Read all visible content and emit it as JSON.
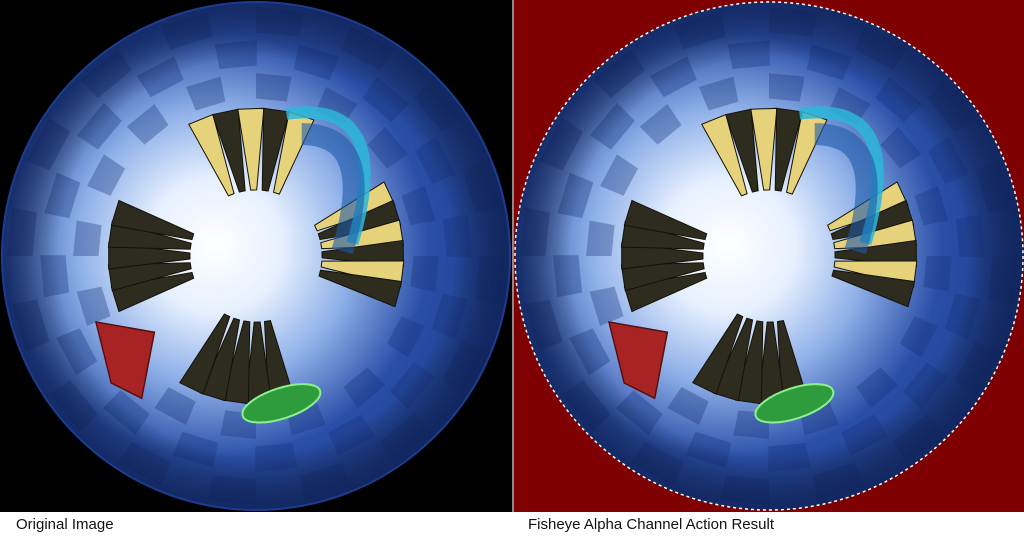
{
  "captions": {
    "left": "Original Image",
    "right": "Fisheye Alpha Channel Action Result"
  },
  "colors": {
    "left_background": "#000000",
    "right_background": "#7f0000",
    "sphere_blue": "#2a4fa8",
    "sphere_center": "#e6f0ff",
    "pillar_dark": "#2e2c1e",
    "pillar_light": "#e6d27a",
    "ribbon": "#2bb7d9",
    "red_object": "#a82424",
    "green_object": "#2e9b3c"
  }
}
